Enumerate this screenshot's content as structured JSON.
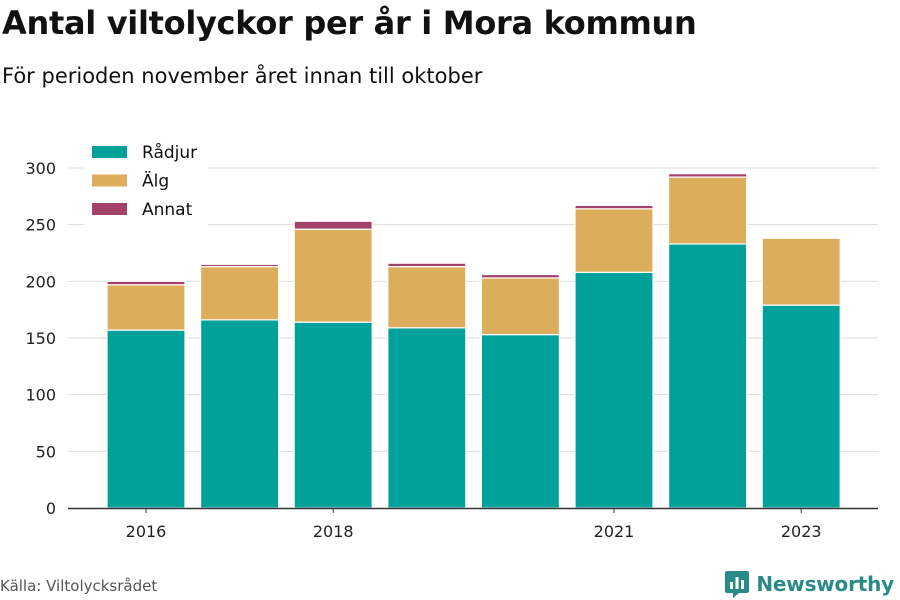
{
  "title": "Antal viltolyckor per år i Mora kommun",
  "subtitle": "För perioden november året innan till oktober",
  "source": "Källa: Viltolycksrådet",
  "brand": "Newsworthy",
  "colors": {
    "radjur": "#00a19a",
    "alg": "#dcae5b",
    "annat": "#a2426a",
    "grid": "#dddddd",
    "axis": "#333333",
    "brand": "#2a8a88"
  },
  "chart_data": {
    "type": "bar",
    "stacked": true,
    "categories": [
      "2016",
      "2017",
      "2018",
      "2019",
      "2020",
      "2021",
      "2022",
      "2023"
    ],
    "x_tick_labels": [
      "2016",
      "",
      "2018",
      "",
      "",
      "2021",
      "",
      "2023"
    ],
    "series": [
      {
        "name": "Rådjur",
        "color": "#00a19a",
        "values": [
          157,
          166,
          164,
          159,
          153,
          208,
          233,
          179
        ]
      },
      {
        "name": "Älg",
        "color": "#dcae5b",
        "values": [
          40,
          47,
          82,
          54,
          50,
          56,
          59,
          59
        ]
      },
      {
        "name": "Annat",
        "color": "#a2426a",
        "values": [
          3,
          2,
          7,
          3,
          3,
          3,
          3,
          0
        ]
      }
    ],
    "yticks": [
      0,
      50,
      100,
      150,
      200,
      250,
      300
    ],
    "ylim": [
      0,
      318
    ],
    "grid": true,
    "legend": "top-left"
  }
}
